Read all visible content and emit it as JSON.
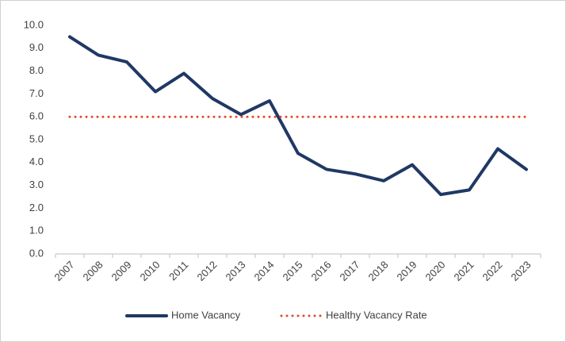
{
  "chart_data": {
    "type": "line",
    "categories": [
      "2007",
      "2008",
      "2009",
      "2010",
      "2011",
      "2012",
      "2013",
      "2014",
      "2015",
      "2016",
      "2017",
      "2018",
      "2019",
      "2020",
      "2021",
      "2022",
      "2023"
    ],
    "series": [
      {
        "name": "Home Vacancy",
        "color": "#203864",
        "style": "solid",
        "values": [
          9.5,
          8.7,
          8.4,
          7.1,
          7.9,
          6.8,
          6.1,
          6.7,
          4.4,
          3.7,
          3.5,
          3.2,
          3.9,
          2.6,
          2.8,
          4.6,
          3.7
        ]
      },
      {
        "name": "Healthy Vacancy Rate",
        "color": "#e04a2a",
        "style": "dotted",
        "values": [
          6.0,
          6.0,
          6.0,
          6.0,
          6.0,
          6.0,
          6.0,
          6.0,
          6.0,
          6.0,
          6.0,
          6.0,
          6.0,
          6.0,
          6.0,
          6.0,
          6.0
        ]
      }
    ],
    "ylim": [
      0,
      10
    ],
    "yticks": [
      {
        "value": 0,
        "label": "0.0"
      },
      {
        "value": 1,
        "label": "1.0"
      },
      {
        "value": 2,
        "label": "2.0"
      },
      {
        "value": 3,
        "label": "3.0"
      },
      {
        "value": 4,
        "label": "4.0"
      },
      {
        "value": 5,
        "label": "5.0"
      },
      {
        "value": 6,
        "label": "6.0"
      },
      {
        "value": 7,
        "label": "7.0"
      },
      {
        "value": 8,
        "label": "8.0"
      },
      {
        "value": 9,
        "label": "9.0"
      },
      {
        "value": 10,
        "label": "10.0"
      }
    ],
    "grid": false,
    "legend": "bottom"
  }
}
